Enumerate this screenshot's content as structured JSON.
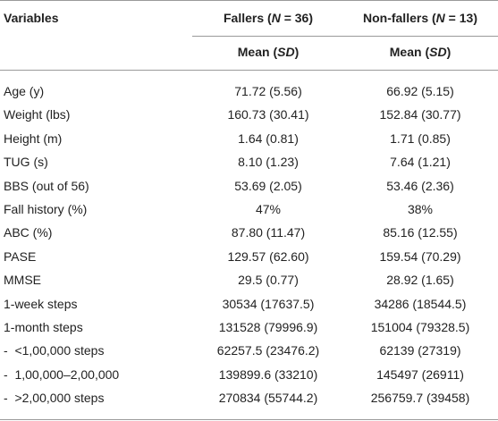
{
  "table": {
    "header": {
      "variables": "Variables",
      "groups": [
        [
          "Fallers (",
          "N",
          " = 36)"
        ],
        [
          "Non-fallers (",
          "N",
          " = 13)"
        ]
      ],
      "stat": [
        [
          "Mean (",
          "SD",
          ")"
        ],
        [
          "Mean (",
          "SD",
          ")"
        ]
      ]
    },
    "rows": [
      [
        "Age (y)",
        "71.72 (5.56)",
        "66.92 (5.15)"
      ],
      [
        "Weight (lbs)",
        "160.73 (30.41)",
        "152.84 (30.77)"
      ],
      [
        "Height (m)",
        "1.64 (0.81)",
        "1.71 (0.85)"
      ],
      [
        "TUG (s)",
        "8.10 (1.23)",
        "7.64 (1.21)"
      ],
      [
        "BBS (out of 56)",
        "53.69 (2.05)",
        "53.46 (2.36)"
      ],
      [
        "Fall history (%)",
        "47%",
        "38%"
      ],
      [
        "ABC (%)",
        "87.80 (11.47)",
        "85.16 (12.55)"
      ],
      [
        "PASE",
        "129.57 (62.60)",
        "159.54 (70.29)"
      ],
      [
        "MMSE",
        "29.5 (0.77)",
        "28.92 (1.65)"
      ],
      [
        "1-week steps",
        "30534 (17637.5)",
        "34286 (18544.5)"
      ],
      [
        "1-month steps",
        "131528 (79996.9)",
        "151004 (79328.5)"
      ],
      [
        "-  <1,00,000 steps",
        "62257.5 (23476.2)",
        "62139 (27319)"
      ],
      [
        "-  1,00,000–2,00,000",
        "139899.6 (33210)",
        "145497 (26911)"
      ],
      [
        "-  >2,00,000 steps",
        "270834 (55744.2)",
        "256759.7 (39458)"
      ]
    ]
  }
}
